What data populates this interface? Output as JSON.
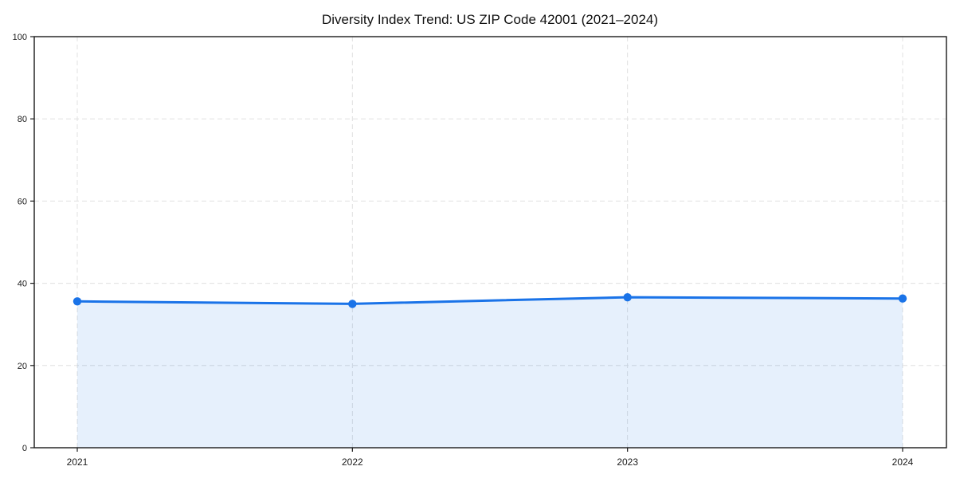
{
  "chart_data": {
    "type": "area",
    "title": "Diversity Index Trend: US ZIP Code 42001 (2021–2024)",
    "xlabel": "",
    "ylabel": "",
    "categories": [
      "2021",
      "2022",
      "2023",
      "2024"
    ],
    "series": [
      {
        "name": "Diversity Index",
        "values": [
          35.6,
          35.0,
          36.6,
          36.3
        ]
      }
    ],
    "ylim": [
      0,
      100
    ],
    "yticks": [
      0,
      20,
      40,
      60,
      80,
      100
    ],
    "grid": true,
    "grid_style": "dashed",
    "legend_position": "none",
    "marker": "circle",
    "colors": {
      "line": "#1a73e8",
      "marker": "#1a73e8",
      "area_fill": "#1a73e8",
      "area_fill_opacity": "0.11",
      "gridline": "#e0e0e0",
      "frame": "#1a1a1a",
      "tick_text": "#1a1a1a",
      "background": "#ffffff"
    }
  }
}
